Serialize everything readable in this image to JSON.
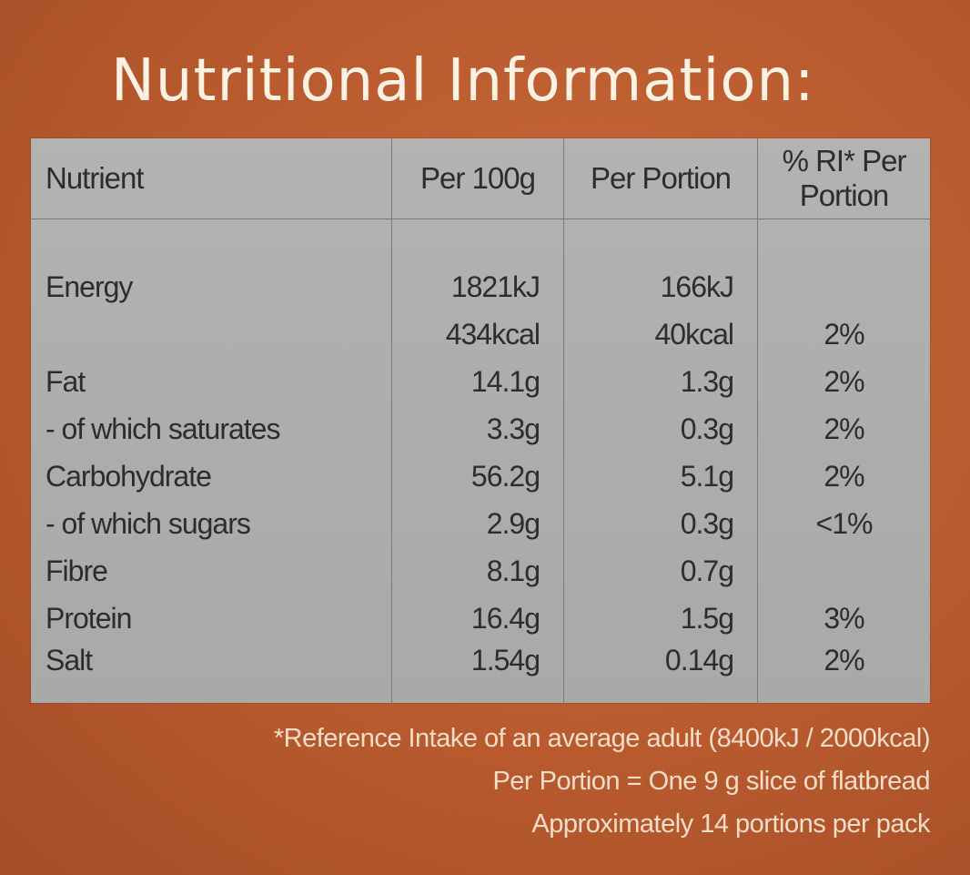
{
  "title": "Nutritional Information:",
  "table": {
    "headers": {
      "nutrient": "Nutrient",
      "per100g": "Per 100g",
      "perPortion": "Per Portion",
      "ri": "% RI* Per Portion"
    },
    "rows": [
      {
        "nutrient": "Energy",
        "per100g": "1821kJ",
        "perPortion": "166kJ",
        "ri": ""
      },
      {
        "nutrient": "",
        "per100g": "434kcal",
        "perPortion": "40kcal",
        "ri": "2%"
      },
      {
        "nutrient": "Fat",
        "per100g": "14.1g",
        "perPortion": "1.3g",
        "ri": "2%"
      },
      {
        "nutrient": "- of which saturates",
        "per100g": "3.3g",
        "perPortion": "0.3g",
        "ri": "2%"
      },
      {
        "nutrient": "Carbohydrate",
        "per100g": "56.2g",
        "perPortion": "5.1g",
        "ri": "2%"
      },
      {
        "nutrient": "- of which sugars",
        "per100g": "2.9g",
        "perPortion": "0.3g",
        "ri": "<1%"
      },
      {
        "nutrient": "Fibre",
        "per100g": "8.1g",
        "perPortion": "0.7g",
        "ri": ""
      },
      {
        "nutrient": "Protein",
        "per100g": "16.4g",
        "perPortion": "1.5g",
        "ri": "3%"
      },
      {
        "nutrient": "Salt",
        "per100g": "1.54g",
        "perPortion": "0.14g",
        "ri": "2%"
      }
    ]
  },
  "footnotes": [
    "*Reference Intake of an average adult (8400kJ / 2000kcal)",
    "Per Portion = One 9 g slice of flatbread",
    "Approximately 14 portions per pack"
  ]
}
